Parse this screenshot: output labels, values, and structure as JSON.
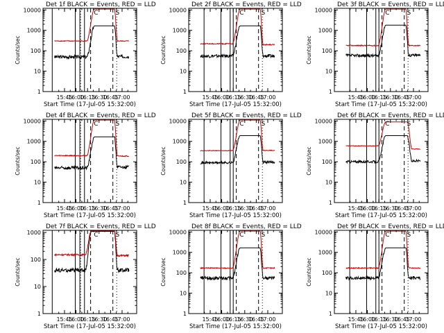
{
  "figure_title": "",
  "chart_data": [
    {
      "type": "line",
      "panel": 1,
      "title": "Det 1f  BLACK = Events, RED = LLD",
      "xlabel": "Start Time (17-Jul-05 15:32:00)",
      "ylabel": "Counts/sec",
      "yscale": "log",
      "ylim": [
        1,
        12000
      ],
      "xlim_minutes": [
        -15,
        107
      ],
      "x_ticks": [
        "15:45",
        "16:00",
        "16:15",
        "16:30",
        "16:45",
        "17:00"
      ],
      "y_ticks": [
        "1",
        "10",
        "100",
        "1000",
        "10000"
      ],
      "series": [
        {
          "name": "Events",
          "color": "#000000",
          "baseline": 50,
          "peak": 1650,
          "post": 52,
          "noise": 0.16
        },
        {
          "name": "LLD",
          "color": "#cc0000",
          "baseline": 300,
          "peak": 11000,
          "post": 300,
          "noise": 0.04
        }
      ],
      "rise_start": 42,
      "peak_start": 52,
      "decay_start": 78,
      "peak_end": 82,
      "data_end": 97,
      "solid_lines": [
        -3,
        27,
        33,
        39
      ],
      "dashed_lines": [
        47,
        76
      ],
      "dotted_lines": [
        34,
        81
      ],
      "markers": [
        {
          "symbol": "C",
          "at": 54
        },
        {
          "symbol": "S",
          "at": 82
        }
      ]
    },
    {
      "type": "line",
      "panel": 2,
      "title": "Det 2f  BLACK = Events, RED = LLD",
      "xlabel": "Start Time (17-Jul-05 15:32:00)",
      "ylabel": "Counts/sec",
      "yscale": "log",
      "ylim": [
        1,
        12000
      ],
      "xlim_minutes": [
        -15,
        107
      ],
      "x_ticks": [
        "15:45",
        "16:00",
        "16:15",
        "16:30",
        "16:45",
        "17:00"
      ],
      "y_ticks": [
        "1",
        "10",
        "100",
        "1000",
        "10000"
      ],
      "series": [
        {
          "name": "Events",
          "color": "#000000",
          "baseline": 55,
          "peak": 1650,
          "post": 55,
          "noise": 0.16
        },
        {
          "name": "LLD",
          "color": "#cc0000",
          "baseline": 220,
          "peak": 11000,
          "post": 200,
          "noise": 0.05
        }
      ],
      "rise_start": 42,
      "peak_start": 52,
      "decay_start": 78,
      "peak_end": 82,
      "data_end": 97,
      "solid_lines": [
        5,
        27,
        39,
        43
      ],
      "dashed_lines": [
        47,
        76
      ],
      "dotted_lines": [
        81
      ],
      "markers": [
        {
          "symbol": "C",
          "at": 54
        },
        {
          "symbol": "S",
          "at": 82
        }
      ]
    },
    {
      "type": "line",
      "panel": 3,
      "title": "Det 3f  BLACK = Events, RED = LLD",
      "xlabel": "Start Time (17-Jul-05 15:32:00)",
      "ylabel": "Counts/sec",
      "yscale": "log",
      "ylim": [
        1,
        12000
      ],
      "xlim_minutes": [
        -15,
        107
      ],
      "x_ticks": [
        "15:45",
        "16:00",
        "16:15",
        "16:30",
        "16:45",
        "17:00"
      ],
      "y_ticks": [
        "1",
        "10",
        "100",
        "1000",
        "10000"
      ],
      "series": [
        {
          "name": "Events",
          "color": "#000000",
          "baseline": 58,
          "peak": 1800,
          "post": 60,
          "noise": 0.15
        },
        {
          "name": "LLD",
          "color": "#cc0000",
          "baseline": 180,
          "peak": 11000,
          "post": 180,
          "noise": 0.05
        }
      ],
      "rise_start": 42,
      "peak_start": 52,
      "decay_start": 78,
      "peak_end": 82,
      "data_end": 97,
      "solid_lines": [
        5,
        27,
        39,
        43
      ],
      "dashed_lines": [
        47,
        76
      ],
      "dotted_lines": [
        81
      ],
      "markers": [
        {
          "symbol": "C",
          "at": 54
        },
        {
          "symbol": "S",
          "at": 82
        }
      ]
    },
    {
      "type": "line",
      "panel": 4,
      "title": "Det 4f  BLACK = Events, RED = LLD",
      "xlabel": "Start Time (17-Jul-05 15:32:00)",
      "ylabel": "Counts/sec",
      "yscale": "log",
      "ylim": [
        1,
        12000
      ],
      "xlim_minutes": [
        -15,
        107
      ],
      "x_ticks": [
        "15:45",
        "16:00",
        "16:15",
        "16:30",
        "16:45",
        "17:00"
      ],
      "y_ticks": [
        "1",
        "10",
        "100",
        "1000",
        "10000"
      ],
      "series": [
        {
          "name": "Events",
          "color": "#000000",
          "baseline": 50,
          "peak": 1650,
          "post": 55,
          "noise": 0.16
        },
        {
          "name": "LLD",
          "color": "#cc0000",
          "baseline": 200,
          "peak": 11000,
          "post": 190,
          "noise": 0.05
        }
      ],
      "rise_start": 42,
      "peak_start": 52,
      "decay_start": 78,
      "peak_end": 82,
      "data_end": 97,
      "solid_lines": [
        -3,
        27,
        33,
        39
      ],
      "dashed_lines": [
        47,
        76
      ],
      "dotted_lines": [
        34,
        81
      ],
      "markers": [
        {
          "symbol": "C",
          "at": 54
        },
        {
          "symbol": "S",
          "at": 82
        }
      ]
    },
    {
      "type": "line",
      "panel": 5,
      "title": "Det 5f  BLACK = Events, RED = LLD",
      "xlabel": "Start Time (17-Jul-05 15:32:00)",
      "ylabel": "Counts/sec",
      "yscale": "log",
      "ylim": [
        1,
        12000
      ],
      "xlim_minutes": [
        -15,
        107
      ],
      "x_ticks": [
        "15:45",
        "16:00",
        "16:15",
        "16:30",
        "16:45",
        "17:00"
      ],
      "y_ticks": [
        "1",
        "10",
        "100",
        "1000",
        "10000"
      ],
      "series": [
        {
          "name": "Events",
          "color": "#000000",
          "baseline": 90,
          "peak": 1900,
          "post": 95,
          "noise": 0.12
        },
        {
          "name": "LLD",
          "color": "#cc0000",
          "baseline": 350,
          "peak": 11000,
          "post": 360,
          "noise": 0.03
        }
      ],
      "rise_start": 42,
      "peak_start": 52,
      "decay_start": 78,
      "peak_end": 82,
      "data_end": 97,
      "solid_lines": [
        5,
        27,
        39,
        43
      ],
      "dashed_lines": [
        47,
        76
      ],
      "dotted_lines": [
        81
      ],
      "markers": [
        {
          "symbol": "C",
          "at": 54
        },
        {
          "symbol": "S",
          "at": 82
        }
      ]
    },
    {
      "type": "line",
      "panel": 6,
      "title": "Det 6f  BLACK = Events, RED = LLD",
      "xlabel": "Start Time (17-Jul-05 15:32:00)",
      "ylabel": "Counts/sec",
      "yscale": "log",
      "ylim": [
        1,
        12000
      ],
      "xlim_minutes": [
        -15,
        107
      ],
      "x_ticks": [
        "15:45",
        "16:00",
        "16:15",
        "16:30",
        "16:45",
        "17:00"
      ],
      "y_ticks": [
        "1",
        "10",
        "100",
        "1000",
        "10000"
      ],
      "series": [
        {
          "name": "Events",
          "color": "#000000",
          "baseline": 100,
          "peak": 1900,
          "post": 110,
          "noise": 0.12
        },
        {
          "name": "LLD",
          "color": "#cc0000",
          "baseline": 600,
          "peak": 9000,
          "post": 420,
          "noise": 0.03
        }
      ],
      "rise_start": 42,
      "peak_start": 52,
      "decay_start": 80,
      "peak_end": 86,
      "data_end": 97,
      "solid_lines": [
        5,
        27,
        39,
        43
      ],
      "dashed_lines": [
        47,
        76
      ],
      "dotted_lines": [
        81
      ],
      "markers": [
        {
          "symbol": "C",
          "at": 54
        },
        {
          "symbol": "S",
          "at": 82
        }
      ]
    },
    {
      "type": "line",
      "panel": 7,
      "title": "Det 7f  BLACK = Events, RED = LLD",
      "xlabel": "Start Time (17-Jul-05 15:32:00)",
      "ylabel": "Counts/sec",
      "yscale": "log",
      "ylim": [
        1,
        1200
      ],
      "xlim_minutes": [
        -15,
        107
      ],
      "x_ticks": [
        "15:45",
        "16:00",
        "16:15",
        "16:30",
        "16:45",
        "17:00"
      ],
      "y_ticks": [
        "1",
        "10",
        "100",
        "1000"
      ],
      "series": [
        {
          "name": "Events",
          "color": "#000000",
          "baseline": 40,
          "peak": 1100,
          "post": 40,
          "noise": 0.15
        },
        {
          "name": "LLD",
          "color": "#cc0000",
          "baseline": 150,
          "peak": 1150,
          "post": 140,
          "noise": 0.06
        }
      ],
      "rise_start": 40,
      "peak_start": 48,
      "decay_start": 78,
      "peak_end": 82,
      "data_end": 97,
      "solid_lines": [
        -3,
        27,
        33,
        39
      ],
      "dashed_lines": [
        47,
        76
      ],
      "dotted_lines": [
        34,
        81
      ],
      "markers": [
        {
          "symbol": "C",
          "at": 54
        },
        {
          "symbol": "S",
          "at": 82
        }
      ]
    },
    {
      "type": "line",
      "panel": 8,
      "title": "Det 8f  BLACK = Events, RED = LLD",
      "xlabel": "Start Time (17-Jul-05 15:32:00)",
      "ylabel": "Counts/sec",
      "yscale": "log",
      "ylim": [
        1,
        12000
      ],
      "xlim_minutes": [
        -15,
        107
      ],
      "x_ticks": [
        "15:45",
        "16:00",
        "16:15",
        "16:30",
        "16:45",
        "17:00"
      ],
      "y_ticks": [
        "1",
        "10",
        "100",
        "1000",
        "10000"
      ],
      "series": [
        {
          "name": "Events",
          "color": "#000000",
          "baseline": 55,
          "peak": 1650,
          "post": 55,
          "noise": 0.16
        },
        {
          "name": "LLD",
          "color": "#cc0000",
          "baseline": 170,
          "peak": 11000,
          "post": 170,
          "noise": 0.05
        }
      ],
      "rise_start": 42,
      "peak_start": 52,
      "decay_start": 78,
      "peak_end": 82,
      "data_end": 97,
      "solid_lines": [
        5,
        27,
        39,
        43
      ],
      "dashed_lines": [
        47,
        76
      ],
      "dotted_lines": [
        81
      ],
      "markers": [
        {
          "symbol": "C",
          "at": 54
        },
        {
          "symbol": "S",
          "at": 82
        }
      ]
    },
    {
      "type": "line",
      "panel": 9,
      "title": "Det 9f  BLACK = Events, RED = LLD",
      "xlabel": "Start Time (17-Jul-05 15:32:00)",
      "ylabel": "Counts/sec",
      "yscale": "log",
      "ylim": [
        1,
        12000
      ],
      "xlim_minutes": [
        -15,
        107
      ],
      "x_ticks": [
        "15:45",
        "16:00",
        "16:15",
        "16:30",
        "16:45",
        "17:00"
      ],
      "y_ticks": [
        "1",
        "10",
        "100",
        "1000",
        "10000"
      ],
      "series": [
        {
          "name": "Events",
          "color": "#000000",
          "baseline": 55,
          "peak": 1650,
          "post": 55,
          "noise": 0.16
        },
        {
          "name": "LLD",
          "color": "#cc0000",
          "baseline": 170,
          "peak": 11000,
          "post": 170,
          "noise": 0.05
        }
      ],
      "rise_start": 42,
      "peak_start": 52,
      "decay_start": 78,
      "peak_end": 82,
      "data_end": 97,
      "solid_lines": [
        5,
        27,
        39,
        43
      ],
      "dashed_lines": [
        47,
        76
      ],
      "dotted_lines": [
        81
      ],
      "markers": [
        {
          "symbol": "C",
          "at": 54
        },
        {
          "symbol": "S",
          "at": 82
        }
      ]
    }
  ]
}
